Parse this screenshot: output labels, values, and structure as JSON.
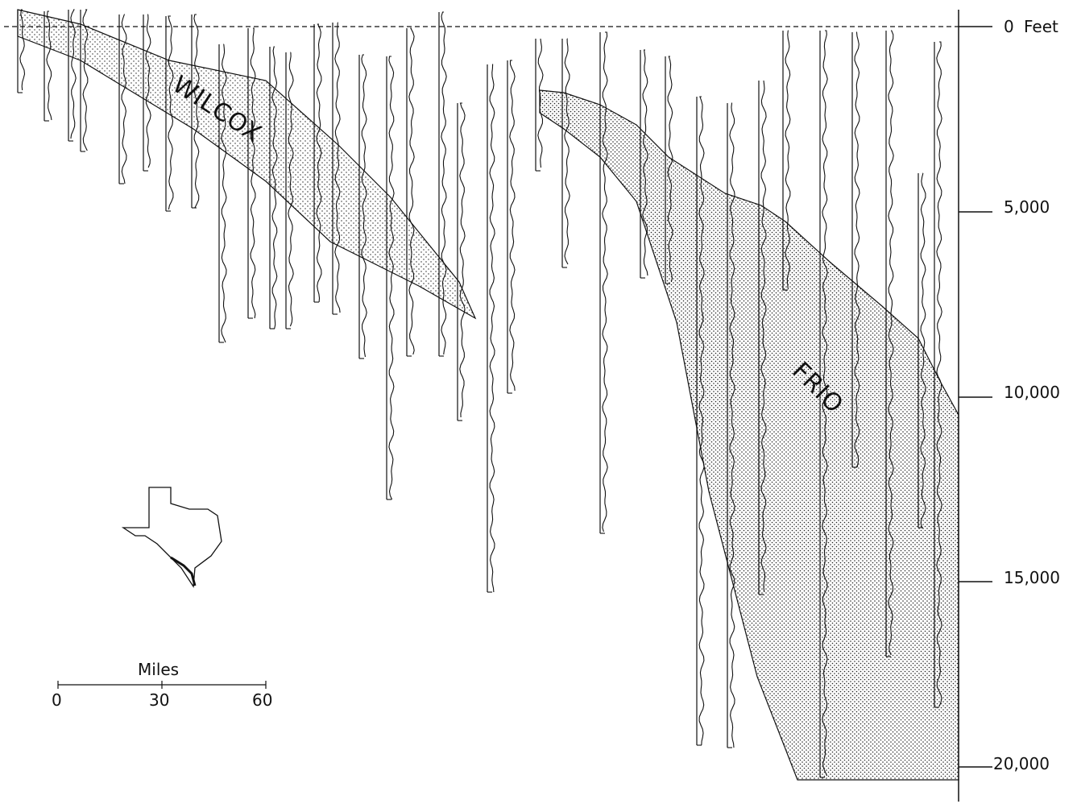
{
  "depth_axis": {
    "unit": "Feet",
    "ticks": [
      {
        "value": 0,
        "label": "0"
      },
      {
        "value": 5000,
        "label": "5,000"
      },
      {
        "value": 10000,
        "label": "10,000"
      },
      {
        "value": 15000,
        "label": "15,000"
      },
      {
        "value": 20000,
        "label": "20,000"
      }
    ]
  },
  "formations": [
    {
      "id": "wilcox",
      "label": "WILCOX"
    },
    {
      "id": "frio",
      "label": "FRIO"
    }
  ],
  "scale_bar": {
    "title": "Miles",
    "ticks": [
      "0",
      "30",
      "60"
    ]
  },
  "inset_map": {
    "icon": "texas-outline-map"
  },
  "colors": {
    "ink": "#111111",
    "stipple": "#1a1a1a",
    "background": "#ffffff"
  }
}
